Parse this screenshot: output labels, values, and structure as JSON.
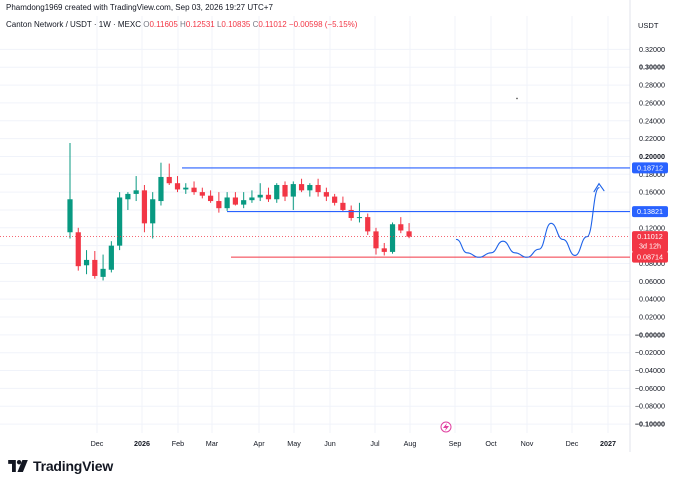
{
  "header": {
    "credit": "Phamdong1969 created with TradingView.com, Sep 03, 2026 19:27 UTC+7"
  },
  "legend": {
    "symbol": "Canton Network / USDT · 1W · MEXC",
    "o_label": "O",
    "o_value": "0.11605",
    "h_label": "H",
    "h_value": "0.12531",
    "l_label": "L",
    "l_value": "0.10835",
    "c_label": "C",
    "c_value": "0.11012",
    "change": "−0.00598 (−5.15%)"
  },
  "footer": {
    "brand": "TradingView",
    "logo_icon": "tradingview-logo-icon"
  },
  "colors": {
    "up": "#089981",
    "down": "#f23645",
    "blue": "#2962ff",
    "hand_blue": "#1e63e9",
    "grid": "#f0f3fa",
    "text": "#131722"
  },
  "chart_data": {
    "type": "candlestick",
    "symbol": "Canton Network / USDT",
    "interval": "1W",
    "exchange": "MEXC",
    "currency": "USDT",
    "ylim": [
      -0.11,
      0.335
    ],
    "y_ticks": [
      "0.32000",
      "0.30000",
      "0.28000",
      "0.26000",
      "0.24000",
      "0.22000",
      "0.20000",
      "0.18000",
      "0.16000",
      "0.14000",
      "0.12000",
      "0.10000",
      "0.08000",
      "0.06000",
      "0.04000",
      "0.02000",
      "−0.00000",
      "−0.02000",
      "−0.04000",
      "−0.06000",
      "−0.08000",
      "−0.10000"
    ],
    "y_ticks_bold": [
      "0.30000",
      "0.20000",
      "−0.00000",
      "−0.10000"
    ],
    "x_labels": [
      {
        "text": "Dec",
        "bold": false
      },
      {
        "text": "2026",
        "bold": true
      },
      {
        "text": "Feb",
        "bold": false
      },
      {
        "text": "Mar",
        "bold": false
      },
      {
        "text": "Apr",
        "bold": false
      },
      {
        "text": "May",
        "bold": false
      },
      {
        "text": "Jun",
        "bold": false
      },
      {
        "text": "Jul",
        "bold": false
      },
      {
        "text": "Aug",
        "bold": false
      },
      {
        "text": "Sep",
        "bold": false
      },
      {
        "text": "Oct",
        "bold": false
      },
      {
        "text": "Nov",
        "bold": false
      },
      {
        "text": "Dec",
        "bold": false
      },
      {
        "text": "2027",
        "bold": true
      }
    ],
    "candles": [
      {
        "o": 0.115,
        "h": 0.215,
        "l": 0.108,
        "c": 0.152
      },
      {
        "o": 0.115,
        "h": 0.12,
        "l": 0.072,
        "c": 0.077
      },
      {
        "o": 0.078,
        "h": 0.095,
        "l": 0.068,
        "c": 0.084
      },
      {
        "o": 0.084,
        "h": 0.094,
        "l": 0.063,
        "c": 0.066
      },
      {
        "o": 0.065,
        "h": 0.09,
        "l": 0.061,
        "c": 0.074
      },
      {
        "o": 0.073,
        "h": 0.105,
        "l": 0.07,
        "c": 0.1
      },
      {
        "o": 0.1,
        "h": 0.16,
        "l": 0.095,
        "c": 0.154
      },
      {
        "o": 0.152,
        "h": 0.16,
        "l": 0.14,
        "c": 0.158
      },
      {
        "o": 0.158,
        "h": 0.178,
        "l": 0.15,
        "c": 0.162
      },
      {
        "o": 0.162,
        "h": 0.168,
        "l": 0.115,
        "c": 0.125
      },
      {
        "o": 0.125,
        "h": 0.16,
        "l": 0.108,
        "c": 0.152
      },
      {
        "o": 0.15,
        "h": 0.193,
        "l": 0.145,
        "c": 0.177
      },
      {
        "o": 0.177,
        "h": 0.192,
        "l": 0.168,
        "c": 0.17
      },
      {
        "o": 0.17,
        "h": 0.178,
        "l": 0.16,
        "c": 0.163
      },
      {
        "o": 0.163,
        "h": 0.17,
        "l": 0.158,
        "c": 0.165
      },
      {
        "o": 0.165,
        "h": 0.172,
        "l": 0.157,
        "c": 0.16
      },
      {
        "o": 0.16,
        "h": 0.165,
        "l": 0.153,
        "c": 0.156
      },
      {
        "o": 0.156,
        "h": 0.162,
        "l": 0.148,
        "c": 0.15
      },
      {
        "o": 0.15,
        "h": 0.16,
        "l": 0.137,
        "c": 0.142
      },
      {
        "o": 0.142,
        "h": 0.16,
        "l": 0.139,
        "c": 0.154
      },
      {
        "o": 0.154,
        "h": 0.16,
        "l": 0.145,
        "c": 0.146
      },
      {
        "o": 0.146,
        "h": 0.16,
        "l": 0.142,
        "c": 0.151
      },
      {
        "o": 0.151,
        "h": 0.162,
        "l": 0.148,
        "c": 0.154
      },
      {
        "o": 0.154,
        "h": 0.17,
        "l": 0.15,
        "c": 0.157
      },
      {
        "o": 0.157,
        "h": 0.165,
        "l": 0.149,
        "c": 0.152
      },
      {
        "o": 0.152,
        "h": 0.17,
        "l": 0.148,
        "c": 0.168
      },
      {
        "o": 0.168,
        "h": 0.172,
        "l": 0.15,
        "c": 0.155
      },
      {
        "o": 0.155,
        "h": 0.172,
        "l": 0.14,
        "c": 0.169
      },
      {
        "o": 0.169,
        "h": 0.175,
        "l": 0.16,
        "c": 0.162
      },
      {
        "o": 0.162,
        "h": 0.17,
        "l": 0.155,
        "c": 0.168
      },
      {
        "o": 0.168,
        "h": 0.175,
        "l": 0.155,
        "c": 0.16
      },
      {
        "o": 0.16,
        "h": 0.165,
        "l": 0.15,
        "c": 0.155
      },
      {
        "o": 0.155,
        "h": 0.158,
        "l": 0.145,
        "c": 0.148
      },
      {
        "o": 0.148,
        "h": 0.155,
        "l": 0.138,
        "c": 0.14
      },
      {
        "o": 0.14,
        "h": 0.145,
        "l": 0.128,
        "c": 0.131
      },
      {
        "o": 0.131,
        "h": 0.148,
        "l": 0.126,
        "c": 0.132
      },
      {
        "o": 0.132,
        "h": 0.136,
        "l": 0.112,
        "c": 0.116
      },
      {
        "o": 0.116,
        "h": 0.12,
        "l": 0.09,
        "c": 0.097
      },
      {
        "o": 0.097,
        "h": 0.103,
        "l": 0.089,
        "c": 0.093
      },
      {
        "o": 0.093,
        "h": 0.126,
        "l": 0.091,
        "c": 0.124
      },
      {
        "o": 0.124,
        "h": 0.132,
        "l": 0.114,
        "c": 0.117
      },
      {
        "o": 0.11605,
        "h": 0.12531,
        "l": 0.10835,
        "c": 0.11012
      }
    ],
    "horizontal_lines": [
      {
        "value": 0.18712,
        "label": "0.18712",
        "color": "#2962ff"
      },
      {
        "value": 0.13821,
        "label": "0.13821",
        "color": "#2962ff"
      },
      {
        "value": 0.08714,
        "label": "0.08714",
        "color": "#f23645"
      }
    ],
    "last_price": {
      "label": "0.11012",
      "countdown": "3d 12h"
    },
    "projection_path": [
      [
        0.1205,
        0.107
      ],
      [
        1.0,
        0.092
      ],
      [
        2.0,
        0.087
      ],
      [
        3.0,
        0.092
      ],
      [
        4.0,
        0.105
      ],
      [
        5.0,
        0.092
      ],
      [
        6.0,
        0.087
      ],
      [
        7.0,
        0.096
      ],
      [
        8.0,
        0.125
      ],
      [
        9.0,
        0.107
      ],
      [
        10.0,
        0.089
      ],
      [
        11.0,
        0.11
      ],
      [
        12.0,
        0.165
      ]
    ]
  }
}
